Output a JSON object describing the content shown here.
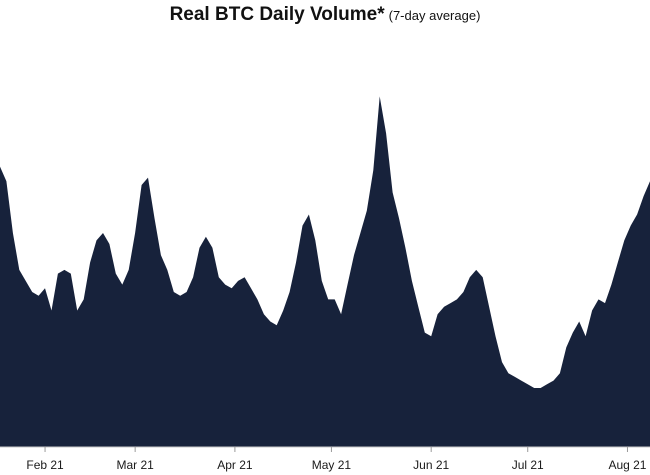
{
  "chart_data": {
    "type": "area",
    "title": "Real BTC Daily Volume*",
    "subtitle": "(7-day average)",
    "xlabel": "",
    "ylabel": "",
    "x_ticks": [
      "Feb 21",
      "Mar 21",
      "Apr 21",
      "May 21",
      "Jun 21",
      "Jul 21",
      "Aug 21"
    ],
    "grid": false,
    "legend": "none",
    "fill_color": "#17223b",
    "series": [
      {
        "x": [
          "2021-01-18",
          "2021-01-20",
          "2021-01-22",
          "2021-01-24",
          "2021-01-26",
          "2021-01-28",
          "2021-01-30",
          "2021-02-01",
          "2021-02-03",
          "2021-02-05",
          "2021-02-07",
          "2021-02-09",
          "2021-02-11",
          "2021-02-13",
          "2021-02-15",
          "2021-02-17",
          "2021-02-19",
          "2021-02-21",
          "2021-02-23",
          "2021-02-25",
          "2021-02-27",
          "2021-03-01",
          "2021-03-03",
          "2021-03-05",
          "2021-03-07",
          "2021-03-09",
          "2021-03-11",
          "2021-03-13",
          "2021-03-15",
          "2021-03-17",
          "2021-03-19",
          "2021-03-21",
          "2021-03-23",
          "2021-03-25",
          "2021-03-27",
          "2021-03-29",
          "2021-03-31",
          "2021-04-02",
          "2021-04-04",
          "2021-04-06",
          "2021-04-08",
          "2021-04-10",
          "2021-04-12",
          "2021-04-14",
          "2021-04-16",
          "2021-04-18",
          "2021-04-20",
          "2021-04-22",
          "2021-04-24",
          "2021-04-26",
          "2021-04-28",
          "2021-04-30",
          "2021-05-02",
          "2021-05-04",
          "2021-05-06",
          "2021-05-08",
          "2021-05-10",
          "2021-05-12",
          "2021-05-14",
          "2021-05-16",
          "2021-05-18",
          "2021-05-20",
          "2021-05-22",
          "2021-05-24",
          "2021-05-26",
          "2021-05-28",
          "2021-05-30",
          "2021-06-01",
          "2021-06-03",
          "2021-06-05",
          "2021-06-07",
          "2021-06-09",
          "2021-06-11",
          "2021-06-13",
          "2021-06-15",
          "2021-06-17",
          "2021-06-19",
          "2021-06-21",
          "2021-06-23",
          "2021-06-25",
          "2021-06-27",
          "2021-06-29",
          "2021-07-01",
          "2021-07-03",
          "2021-07-05",
          "2021-07-07",
          "2021-07-09",
          "2021-07-11",
          "2021-07-13",
          "2021-07-15",
          "2021-07-17",
          "2021-07-19",
          "2021-07-21",
          "2021-07-23",
          "2021-07-25",
          "2021-07-27",
          "2021-07-29",
          "2021-07-31",
          "2021-08-02",
          "2021-08-04",
          "2021-08-06",
          "2021-08-08"
        ],
        "y": [
          0.76,
          0.72,
          0.58,
          0.48,
          0.45,
          0.42,
          0.41,
          0.43,
          0.37,
          0.47,
          0.48,
          0.47,
          0.37,
          0.4,
          0.5,
          0.56,
          0.58,
          0.55,
          0.47,
          0.44,
          0.48,
          0.58,
          0.71,
          0.73,
          0.62,
          0.52,
          0.48,
          0.42,
          0.41,
          0.42,
          0.46,
          0.54,
          0.57,
          0.54,
          0.46,
          0.44,
          0.43,
          0.45,
          0.46,
          0.43,
          0.4,
          0.36,
          0.34,
          0.33,
          0.37,
          0.42,
          0.5,
          0.6,
          0.63,
          0.56,
          0.45,
          0.4,
          0.4,
          0.36,
          0.44,
          0.52,
          0.58,
          0.64,
          0.75,
          0.95,
          0.85,
          0.69,
          0.62,
          0.54,
          0.45,
          0.38,
          0.31,
          0.3,
          0.36,
          0.38,
          0.39,
          0.4,
          0.42,
          0.46,
          0.48,
          0.46,
          0.38,
          0.3,
          0.23,
          0.2,
          0.19,
          0.18,
          0.17,
          0.16,
          0.16,
          0.17,
          0.18,
          0.2,
          0.27,
          0.31,
          0.34,
          0.3,
          0.37,
          0.4,
          0.39,
          0.44,
          0.5,
          0.56,
          0.6,
          0.63,
          0.68,
          0.72
        ]
      }
    ]
  }
}
